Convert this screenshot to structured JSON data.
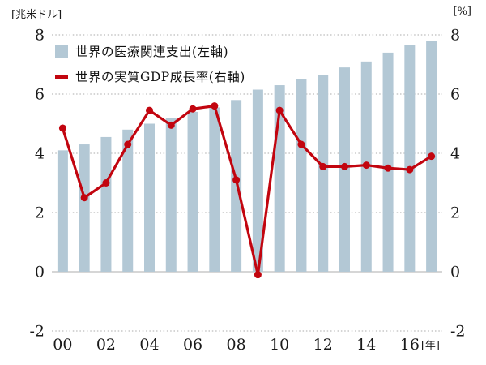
{
  "chart": {
    "left_axis_unit": "[兆米ドル]",
    "right_axis_unit": "[%]",
    "x_axis_unit": "[年]",
    "legend": [
      {
        "label": "世界の医療関連支出(左軸)",
        "marker": "bar-swatch"
      },
      {
        "label": "世界の実質GDP成長率(右軸)",
        "marker": "line-dash"
      }
    ],
    "colors": {
      "bar": "#b3c8d5",
      "line": "#c2050f",
      "grid": "#ababab",
      "zero_line": "#bdbdbd",
      "text": "#1a1a1a"
    }
  },
  "chart_data": {
    "type": "combo-bar-line",
    "categories": [
      "00",
      "01",
      "02",
      "03",
      "04",
      "05",
      "06",
      "07",
      "08",
      "09",
      "10",
      "11",
      "12",
      "13",
      "14",
      "15",
      "16",
      "17"
    ],
    "x_tick_labels_shown": [
      "00",
      "02",
      "04",
      "06",
      "08",
      "10",
      "12",
      "14",
      "16"
    ],
    "series": [
      {
        "name": "世界の医療関連支出(左軸)",
        "type": "bar",
        "axis": "left",
        "axis_unit": "兆米ドル",
        "values": [
          4.1,
          4.3,
          4.55,
          4.8,
          5.0,
          5.2,
          5.4,
          5.55,
          5.8,
          6.15,
          6.3,
          6.5,
          6.65,
          6.9,
          7.1,
          7.4,
          7.65,
          7.8
        ]
      },
      {
        "name": "世界の実質GDP成長率(右軸)",
        "type": "line",
        "axis": "right",
        "axis_unit": "%",
        "values": [
          4.85,
          2.5,
          3.0,
          4.3,
          5.45,
          4.95,
          5.5,
          5.6,
          3.1,
          -0.1,
          5.45,
          4.3,
          3.55,
          3.55,
          3.6,
          3.5,
          3.45,
          3.9
        ]
      }
    ],
    "y_ticks": [
      8,
      6,
      4,
      2,
      0,
      -2
    ],
    "ylim": [
      -2,
      8
    ],
    "grid": "dotted-horizontal",
    "legend_position": "top-left-inside"
  }
}
